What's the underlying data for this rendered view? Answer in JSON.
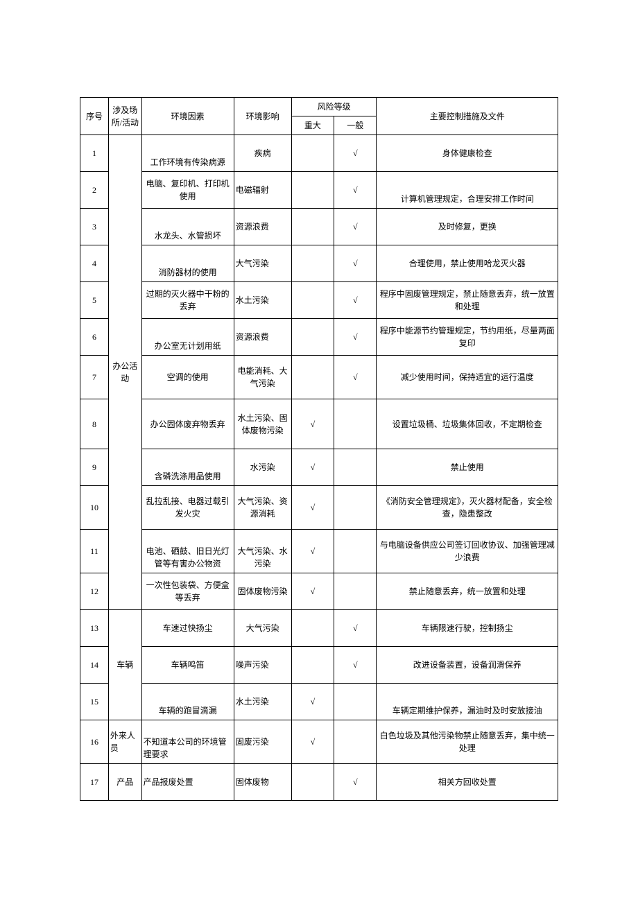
{
  "headers": {
    "seq": "序号",
    "place": "涉及场所/活动",
    "factor": "环境因素",
    "impact": "环境影响",
    "risk": "风险等级",
    "risk_major": "重大",
    "risk_minor": "一般",
    "measure": "主要控制措施及文件"
  },
  "groups": {
    "office": "办公活动",
    "vehicle": "车辆",
    "visitor": "外来人员",
    "product": "产品"
  },
  "rows": [
    {
      "seq": "1",
      "factor": "工作环境有传染病源",
      "impact": "疾病",
      "major": "",
      "minor": "√",
      "measure": "身体健康检查"
    },
    {
      "seq": "2",
      "factor": "电脑、复印机、打印机使用",
      "impact": "电磁辐射",
      "major": "",
      "minor": "√",
      "measure": "计算机管理规定，合理安排工作时间"
    },
    {
      "seq": "3",
      "factor": "水龙头、水管损坏",
      "impact": "资源浪费",
      "major": "",
      "minor": "√",
      "measure": "及时修复，更换"
    },
    {
      "seq": "4",
      "factor": "消防器材的使用",
      "impact": "大气污染",
      "major": "",
      "minor": "√",
      "measure": "合理使用，禁止使用哈龙灭火器"
    },
    {
      "seq": "5",
      "factor": "过期的灭火器中干粉的丢弃",
      "impact": "水土污染",
      "major": "",
      "minor": "√",
      "measure": "程序中固废管理规定，禁止随意丢弃，统一放置和处理"
    },
    {
      "seq": "6",
      "factor": "办公室无计划用纸",
      "impact": "资源浪费",
      "major": "",
      "minor": "√",
      "measure": "程序中能源节约管理规定，节约用纸，尽量两面复印"
    },
    {
      "seq": "7",
      "factor": "空调的使用",
      "impact": "电能消耗、大气污染",
      "major": "",
      "minor": "√",
      "measure": "减少使用时间，保持适宜的运行温度"
    },
    {
      "seq": "8",
      "factor": "办公固体废弃物丢弃",
      "impact": "水土污染、固体废物污染",
      "major": "√",
      "minor": "",
      "measure": "设置垃圾桶、垃圾集体回收，不定期检查"
    },
    {
      "seq": "9",
      "factor": "含磷洗涤用品使用",
      "impact": "水污染",
      "major": "√",
      "minor": "",
      "measure": "禁止使用"
    },
    {
      "seq": "10",
      "factor": "乱拉乱接、电器过载引发火灾",
      "impact": "大气污染、资源消耗",
      "major": "√",
      "minor": "",
      "measure": "《消防安全管理规定》，灭火器材配备，安全检查，隐患整改"
    },
    {
      "seq": "11",
      "factor": "电池、硒鼓、旧日光灯管等有害办公物资",
      "impact": "大气污染、水污染",
      "major": "√",
      "minor": "",
      "measure": "与电脑设备供应公司签订回收协议、加强管理减少浪费"
    },
    {
      "seq": "12",
      "factor": "一次性包装袋、方便盒等丢弃",
      "impact": "固体废物污染",
      "major": "√",
      "minor": "",
      "measure": "禁止随意丢弃，统一放置和处理"
    },
    {
      "seq": "13",
      "factor": "车速过快扬尘",
      "impact": "大气污染",
      "major": "",
      "minor": "√",
      "measure": "车辆限速行驶，控制扬尘"
    },
    {
      "seq": "14",
      "factor": "车辆鸣笛",
      "impact": "噪声污染",
      "major": "",
      "minor": "√",
      "measure": "改进设备装置，设备润滑保养"
    },
    {
      "seq": "15",
      "factor": "车辆的跑冒滴漏",
      "impact": "水土污染",
      "major": "√",
      "minor": "",
      "measure": "车辆定期维护保养，漏油时及时安放接油"
    },
    {
      "seq": "16",
      "factor": "不知道本公司的环境管理要求",
      "impact": "固废污染",
      "major": "√",
      "minor": "",
      "measure": "白色垃圾及其他污染物禁止随意丢弃，集中统一处理"
    },
    {
      "seq": "17",
      "factor": "产品报废处置",
      "impact": "固体废物",
      "major": "",
      "minor": "√",
      "measure": "相关方回收处置"
    }
  ],
  "styling": {
    "border_color": "#000000",
    "background_color": "#ffffff",
    "font_size": 12,
    "text_color": "#000000",
    "check_mark": "√",
    "column_widths": {
      "seq": 36,
      "place": 42,
      "factor": 117,
      "impact": 73,
      "risk_major": 54,
      "risk_minor": 54,
      "measure": 230
    }
  }
}
